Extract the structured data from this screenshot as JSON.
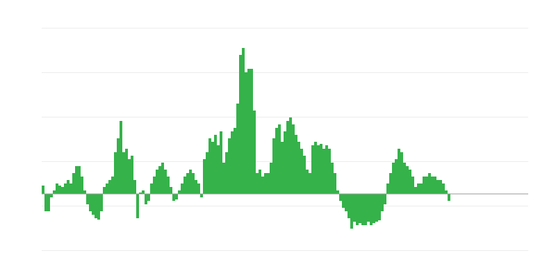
{
  "chart_data": {
    "type": "bar",
    "color": "#35b24a",
    "grid": true,
    "xlim": [
      0,
      175
    ],
    "ylim": [
      -81,
      239
    ],
    "yticks": [
      -81,
      -17,
      47,
      111,
      175,
      239
    ],
    "x": [
      0,
      1,
      2,
      3,
      4,
      5,
      6,
      7,
      8,
      9,
      10,
      11,
      12,
      13,
      14,
      15,
      16,
      17,
      18,
      19,
      20,
      21,
      22,
      23,
      24,
      25,
      26,
      27,
      28,
      29,
      30,
      31,
      32,
      33,
      34,
      35,
      36,
      37,
      38,
      39,
      40,
      41,
      42,
      43,
      44,
      45,
      46,
      47,
      48,
      49,
      50,
      51,
      52,
      53,
      54,
      55,
      56,
      57,
      58,
      59,
      60,
      61,
      62,
      63,
      64,
      65,
      66,
      67,
      68,
      69,
      70,
      71,
      72,
      73,
      74,
      75,
      76,
      77,
      78,
      79,
      80,
      81,
      82,
      83,
      84,
      85,
      86,
      87,
      88,
      89,
      90,
      91,
      92,
      93,
      94,
      95,
      96,
      97,
      98,
      99,
      100,
      101,
      102,
      103,
      104,
      105,
      106,
      107,
      108,
      109,
      110,
      111,
      112,
      113,
      114,
      115,
      116,
      117,
      118,
      119,
      120,
      121,
      122,
      123,
      124,
      125,
      126,
      127,
      128,
      129,
      130,
      131,
      132,
      133,
      134,
      135,
      136,
      137,
      138,
      139,
      140,
      141,
      142,
      143,
      144,
      145,
      146
    ],
    "values": [
      12,
      -25,
      -25,
      -5,
      5,
      15,
      12,
      10,
      15,
      20,
      15,
      30,
      40,
      40,
      25,
      5,
      -15,
      -25,
      -30,
      -35,
      -37,
      -25,
      10,
      15,
      20,
      25,
      60,
      80,
      105,
      60,
      65,
      50,
      55,
      20,
      -35,
      2,
      5,
      -15,
      -10,
      15,
      25,
      35,
      40,
      45,
      35,
      25,
      10,
      -10,
      -8,
      5,
      15,
      25,
      30,
      35,
      30,
      20,
      15,
      -5,
      50,
      60,
      80,
      75,
      85,
      70,
      90,
      45,
      60,
      80,
      90,
      95,
      130,
      200,
      210,
      175,
      180,
      180,
      120,
      30,
      35,
      25,
      30,
      30,
      45,
      80,
      95,
      100,
      75,
      90,
      105,
      110,
      100,
      85,
      75,
      65,
      55,
      35,
      30,
      70,
      75,
      70,
      72,
      65,
      70,
      65,
      45,
      30,
      5,
      -10,
      -20,
      -25,
      -35,
      -50,
      -40,
      -45,
      -42,
      -45,
      -45,
      -40,
      -45,
      -42,
      -40,
      -38,
      -25,
      -15,
      15,
      30,
      45,
      50,
      65,
      60,
      45,
      40,
      35,
      25,
      10,
      15,
      15,
      25,
      25,
      30,
      25,
      25,
      20,
      20,
      15,
      5,
      -10
    ]
  }
}
